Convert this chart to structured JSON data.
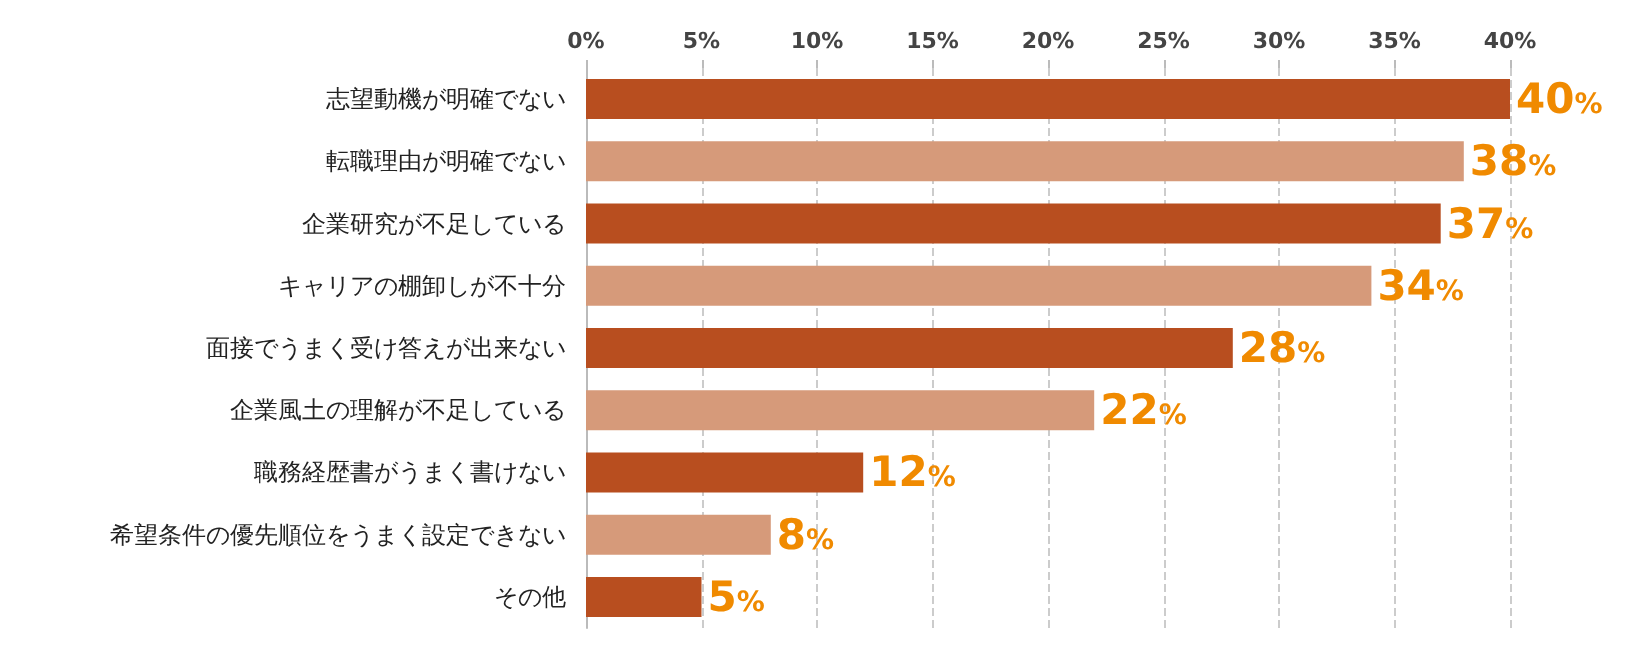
{
  "chart_data": {
    "type": "bar",
    "orientation": "horizontal",
    "categories": [
      "志望動機が明確でない",
      "転職理由が明確でない",
      "企業研究が不足している",
      "キャリアの棚卸しが不十分",
      "面接でうまく受け答えが出来ない",
      "企業風土の理解が不足している",
      "職務経歴書がうまく書けない",
      "希望条件の優先順位をうまく設定できない",
      "その他"
    ],
    "values": [
      40,
      38,
      37,
      34,
      28,
      22,
      12,
      8,
      5
    ],
    "colors": [
      "#b84e1f",
      "#d69a7a",
      "#b84e1f",
      "#d69a7a",
      "#b84e1f",
      "#d69a7a",
      "#b84e1f",
      "#d69a7a",
      "#b84e1f"
    ],
    "value_labels": [
      "40%",
      "38%",
      "37%",
      "34%",
      "28%",
      "22%",
      "12%",
      "8%",
      "5%"
    ],
    "xlim": [
      0,
      40
    ],
    "xticks": [
      {
        "value": 0,
        "label": "0%"
      },
      {
        "value": 5,
        "label": "5%"
      },
      {
        "value": 10,
        "label": "10%"
      },
      {
        "value": 15,
        "label": "15%"
      },
      {
        "value": 20,
        "label": "20%"
      },
      {
        "value": 25,
        "label": "25%"
      },
      {
        "value": 30,
        "label": "30%"
      },
      {
        "value": 35,
        "label": "35%"
      },
      {
        "value": 40,
        "label": "40%"
      }
    ],
    "grid": "x"
  }
}
